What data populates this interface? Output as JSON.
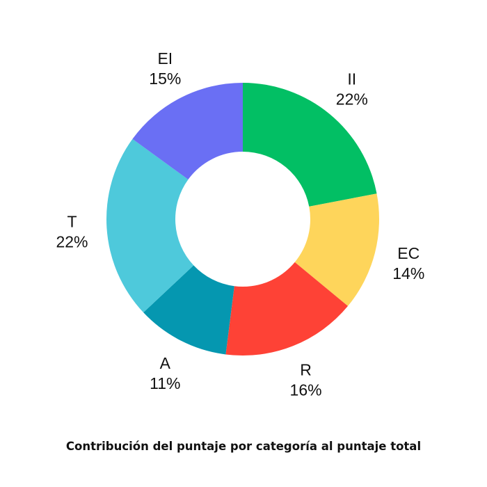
{
  "chart_data": {
    "type": "pie",
    "title": "Contribución del puntaje por categoría al puntaje total",
    "categories": [
      "II",
      "EC",
      "R",
      "A",
      "T",
      "EI"
    ],
    "values": [
      22,
      14,
      16,
      11,
      22,
      15
    ],
    "value_labels": [
      "22%",
      "14%",
      "16%",
      "11%",
      "22%",
      "15%"
    ],
    "colors": [
      "#02bf64",
      "#fed55b",
      "#fe4236",
      "#0597b0",
      "#4ec9db",
      "#6a6ff4"
    ],
    "donut": true,
    "legend": "none"
  }
}
